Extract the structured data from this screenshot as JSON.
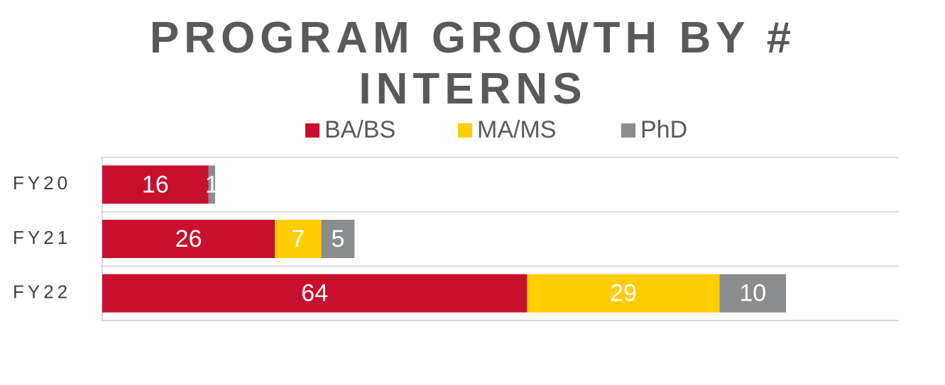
{
  "chart_data": {
    "type": "stacked-barh",
    "title": "PROGRAM GROWTH BY # INTERNS",
    "categories": [
      "FY20",
      "FY21",
      "FY22"
    ],
    "series": [
      {
        "name": "BA/BS",
        "color": "#c8102e",
        "values": [
          16,
          26,
          64
        ]
      },
      {
        "name": "MA/MS",
        "color": "#ffcd00",
        "values": [
          null,
          7,
          29
        ]
      },
      {
        "name": "PhD",
        "color": "#8a8c8e",
        "values": [
          1,
          5,
          10
        ]
      }
    ],
    "xlim": [
      0,
      120
    ],
    "legend": "top"
  }
}
